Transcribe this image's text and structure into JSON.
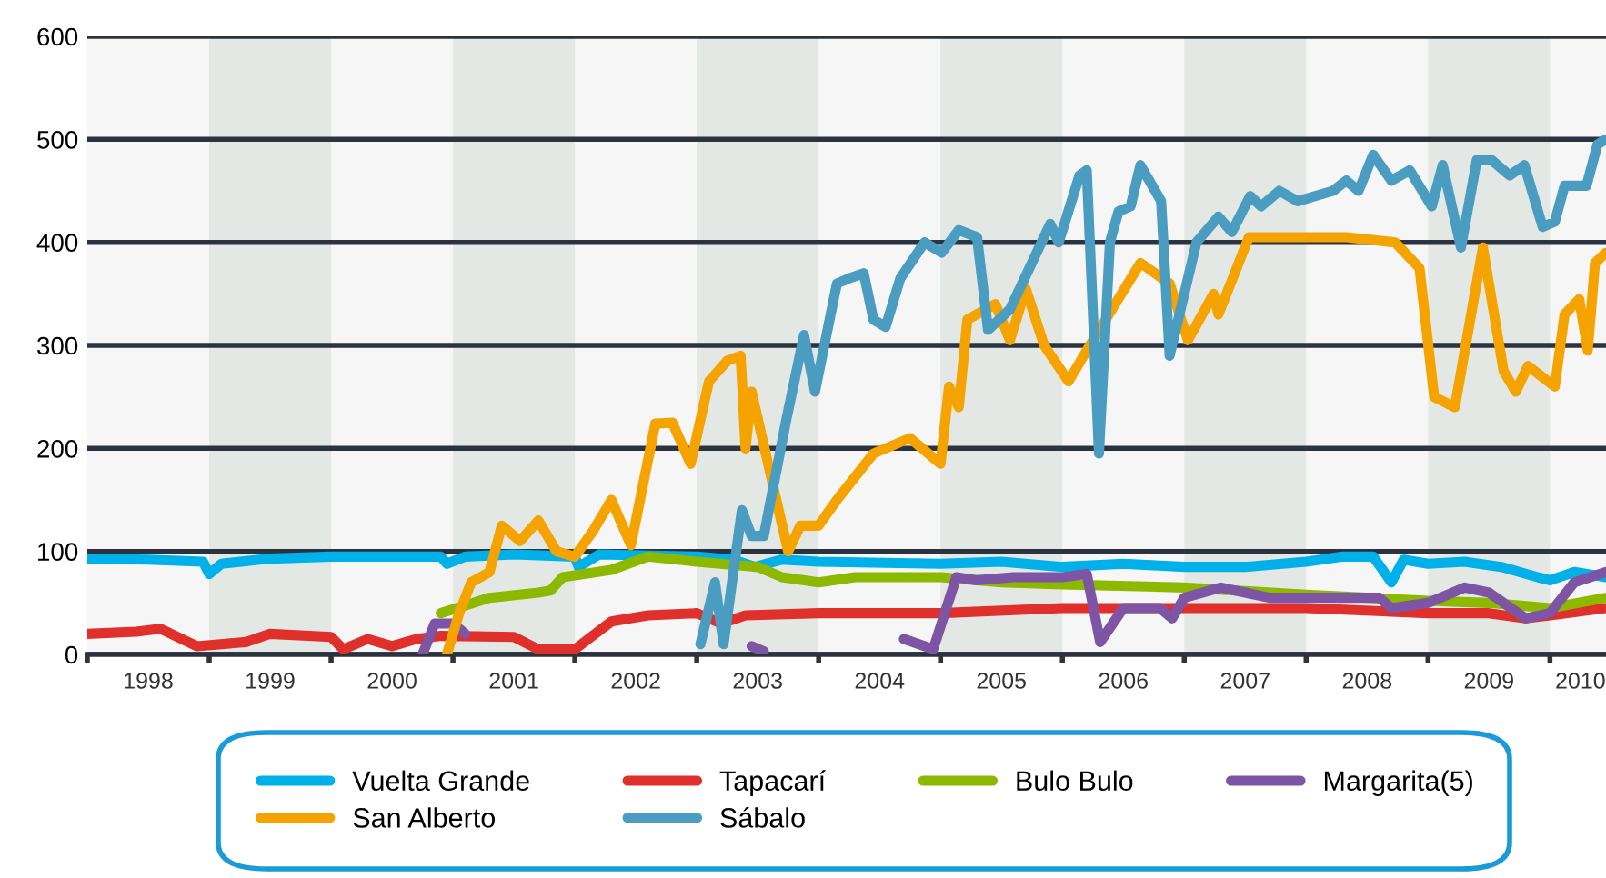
{
  "chart_data": {
    "type": "line",
    "xlim": [
      1998,
      2010.46
    ],
    "ylim": [
      0,
      600
    ],
    "yticks": [
      0,
      100,
      200,
      300,
      400,
      500,
      600
    ],
    "xticks": [
      {
        "value": 1998,
        "label": null
      },
      {
        "value": 1998.5,
        "label": "1998"
      },
      {
        "value": 1999,
        "label": null
      },
      {
        "value": 1999.5,
        "label": "1999"
      },
      {
        "value": 2000,
        "label": null
      },
      {
        "value": 2000.5,
        "label": "2000"
      },
      {
        "value": 2001,
        "label": null
      },
      {
        "value": 2001.5,
        "label": "2001"
      },
      {
        "value": 2002,
        "label": null
      },
      {
        "value": 2002.5,
        "label": "2002"
      },
      {
        "value": 2003,
        "label": null
      },
      {
        "value": 2003.5,
        "label": "2003"
      },
      {
        "value": 2004,
        "label": null
      },
      {
        "value": 2004.5,
        "label": "2004"
      },
      {
        "value": 2005,
        "label": null
      },
      {
        "value": 2005.5,
        "label": "2005"
      },
      {
        "value": 2006,
        "label": null
      },
      {
        "value": 2006.5,
        "label": "2006"
      },
      {
        "value": 2007,
        "label": null
      },
      {
        "value": 2007.5,
        "label": "2007"
      },
      {
        "value": 2008,
        "label": null
      },
      {
        "value": 2008.5,
        "label": "2008"
      },
      {
        "value": 2009,
        "label": null
      },
      {
        "value": 2009.5,
        "label": "2009"
      },
      {
        "value": 2010,
        "label": null
      },
      {
        "value": 2010.25,
        "label": "2010"
      }
    ],
    "grid": "y",
    "legend": "bottom",
    "line_style": "solid",
    "bands": [
      {
        "axis": "x",
        "from": 1999,
        "to": 2000,
        "color": "#e4e8e5"
      },
      {
        "axis": "x",
        "from": 2001,
        "to": 2002,
        "color": "#e4e8e5"
      },
      {
        "axis": "x",
        "from": 2003,
        "to": 2004,
        "color": "#e4e8e5"
      },
      {
        "axis": "x",
        "from": 2005,
        "to": 2006,
        "color": "#e4e8e5"
      },
      {
        "axis": "x",
        "from": 2007,
        "to": 2008,
        "color": "#e4e8e5"
      },
      {
        "axis": "x",
        "from": 2009,
        "to": 2010,
        "color": "#e4e8e5"
      }
    ],
    "series": [
      {
        "name": "Vuelta Grande",
        "color": "#00b0e8",
        "x": [
          1998,
          1998.5,
          1998.95,
          1999.0,
          1999.1,
          1999.5,
          2000,
          2000.9,
          2000.95,
          2001.1,
          2001.5,
          2002,
          2002.03,
          2002.2,
          2003,
          2003.3,
          2003.48,
          2003.7,
          2004,
          2005,
          2005.5,
          2006,
          2006.5,
          2007,
          2007.5,
          2008,
          2008.3,
          2008.55,
          2008.7,
          2008.8,
          2009,
          2009.3,
          2009.6,
          2009.9,
          2010,
          2010.2,
          2010.46
        ],
        "values": [
          93,
          92,
          90,
          78,
          88,
          93,
          95,
          95,
          88,
          95,
          97,
          95,
          85,
          97,
          95,
          92,
          85,
          92,
          90,
          88,
          90,
          85,
          88,
          85,
          85,
          90,
          95,
          95,
          70,
          92,
          88,
          90,
          85,
          75,
          72,
          80,
          75
        ]
      },
      {
        "name": "Tapacarí",
        "color": "#e0302c",
        "x": [
          1998,
          1998.4,
          1998.6,
          1998.9,
          1999.3,
          1999.5,
          2000,
          2000.1,
          2000.3,
          2000.5,
          2000.7,
          2000.9,
          2001.5,
          2001.7,
          2002,
          2002.3,
          2002.6,
          2003,
          2003.2,
          2003.4,
          2004,
          2004.5,
          2005,
          2006,
          2007,
          2008,
          2009,
          2009.5,
          2009.8,
          2010,
          2010.46
        ],
        "values": [
          20,
          22,
          25,
          8,
          12,
          20,
          17,
          5,
          15,
          8,
          15,
          18,
          17,
          5,
          5,
          32,
          38,
          40,
          30,
          38,
          40,
          40,
          40,
          45,
          45,
          45,
          40,
          40,
          35,
          38,
          45
        ]
      },
      {
        "name": "Bulo Bulo",
        "color": "#8db800",
        "x": [
          2000.9,
          2001.3,
          2001.7,
          2001.8,
          2001.9,
          2002.3,
          2002.6,
          2003,
          2003.5,
          2003.7,
          2004,
          2004.3,
          2005,
          2005.5,
          2006,
          2007,
          2008,
          2008.5,
          2009,
          2009.5,
          2010,
          2010.46
        ],
        "values": [
          40,
          55,
          60,
          62,
          75,
          82,
          95,
          90,
          85,
          75,
          70,
          75,
          75,
          70,
          68,
          65,
          58,
          55,
          52,
          50,
          45,
          55
        ]
      },
      {
        "name": "Margarita(5)",
        "color": "#7e55a5",
        "x": [
          2000.75,
          2000.85,
          2001.0,
          2001.1,
          2001.12,
          2003.45,
          2003.55,
          2004.6,
          2004.7,
          2004.94,
          2005.13,
          2005.3,
          2005.6,
          2006.0,
          2006.2,
          2006.31,
          2006.5,
          2006.8,
          2006.9,
          2007.0,
          2007.3,
          2007.5,
          2007.7,
          2008,
          2008.6,
          2008.7,
          2009,
          2009.3,
          2009.5,
          2009.8,
          2010,
          2010.2,
          2010.46
        ],
        "values": [
          0,
          30,
          30,
          20,
          null,
          8,
          3,
          null,
          15,
          5,
          75,
          72,
          75,
          75,
          78,
          12,
          45,
          45,
          35,
          55,
          65,
          60,
          55,
          55,
          55,
          45,
          50,
          65,
          60,
          35,
          40,
          70,
          80
        ]
      },
      {
        "name": "San Alberto",
        "color": "#f5a300",
        "x": [
          2000.95,
          2001.05,
          2001.15,
          2001.3,
          2001.4,
          2001.55,
          2001.7,
          2001.85,
          2002.0,
          2002.15,
          2002.3,
          2002.46,
          2002.66,
          2002.8,
          2002.95,
          2003.1,
          2003.25,
          2003.36,
          2003.4,
          2003.45,
          2003.75,
          2003.85,
          2004.0,
          2004.15,
          2004.45,
          2004.75,
          2005.0,
          2005.07,
          2005.15,
          2005.22,
          2005.45,
          2005.57,
          2005.7,
          2005.85,
          2006.05,
          2006.2,
          2006.64,
          2006.88,
          2007.03,
          2007.24,
          2007.28,
          2007.53,
          2008.33,
          2008.73,
          2008.93,
          2009.05,
          2009.22,
          2009.45,
          2009.62,
          2009.72,
          2009.82,
          2010.04,
          2010.12,
          2010.24,
          2010.31,
          2010.37,
          2010.46
        ],
        "values": [
          0,
          40,
          70,
          80,
          125,
          110,
          130,
          100,
          95,
          120,
          150,
          106,
          224,
          225,
          185,
          265,
          285,
          290,
          200,
          255,
          100,
          125,
          125,
          150,
          195,
          210,
          185,
          260,
          240,
          325,
          340,
          305,
          355,
          300,
          265,
          295,
          380,
          360,
          305,
          350,
          330,
          405,
          405,
          400,
          375,
          250,
          240,
          395,
          275,
          255,
          280,
          260,
          330,
          345,
          295,
          380,
          390
        ]
      },
      {
        "name": "Sábalo",
        "color": "#4a9cc0",
        "x": [
          2003.03,
          2003.15,
          2003.22,
          2003.37,
          2003.45,
          2003.55,
          2003.73,
          2003.88,
          2003.97,
          2004.15,
          2004.25,
          2004.37,
          2004.45,
          2004.55,
          2004.67,
          2004.87,
          2005.01,
          2005.15,
          2005.3,
          2005.39,
          2005.57,
          2005.9,
          2005.97,
          2006.14,
          2006.2,
          2006.3,
          2006.39,
          2006.46,
          2006.56,
          2006.64,
          2006.81,
          2006.88,
          2007.1,
          2007.28,
          2007.39,
          2007.54,
          2007.63,
          2007.78,
          2007.93,
          2008.22,
          2008.33,
          2008.43,
          2008.55,
          2008.7,
          2008.85,
          2009.03,
          2009.12,
          2009.27,
          2009.4,
          2009.52,
          2009.67,
          2009.79,
          2009.94,
          2010.04,
          2010.12,
          2010.3,
          2010.39,
          2010.46
        ],
        "values": [
          10,
          70,
          10,
          140,
          115,
          115,
          225,
          310,
          255,
          360,
          365,
          370,
          325,
          318,
          365,
          400,
          390,
          412,
          405,
          315,
          335,
          418,
          400,
          465,
          470,
          195,
          400,
          430,
          435,
          475,
          440,
          290,
          400,
          425,
          410,
          445,
          435,
          450,
          440,
          450,
          460,
          450,
          485,
          460,
          470,
          435,
          475,
          395,
          480,
          480,
          465,
          475,
          415,
          420,
          455,
          455,
          495,
          500
        ]
      }
    ]
  }
}
